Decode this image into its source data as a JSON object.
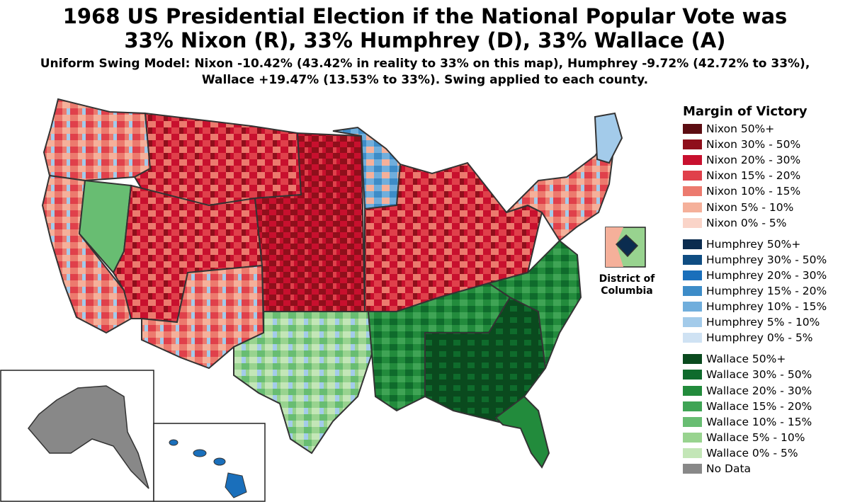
{
  "header": {
    "title_line1": "1968 US Presidential Election if the National Popular Vote was",
    "title_line2": "33% Nixon (R), 33% Humphrey (D), 33% Wallace (A)",
    "subtitle_line1": "Uniform Swing Model: Nixon -10.42% (43.42% in reality to 33% on this map), Humphrey -9.72% (42.72% to 33%),",
    "subtitle_line2": "Wallace +19.47% (13.53% to 33%). Swing applied to each county."
  },
  "inset": {
    "dc_label_line1": "District of",
    "dc_label_line2": "Columbia"
  },
  "legend": {
    "title": "Margin of Victory",
    "groups": [
      [
        {
          "label": "Nixon 50%+",
          "color": "#5c0d12"
        },
        {
          "label": "Nixon 30% - 50%",
          "color": "#8f0f1b"
        },
        {
          "label": "Nixon 20% - 30%",
          "color": "#c8102e"
        },
        {
          "label": "Nixon 15% - 20%",
          "color": "#e0404b"
        },
        {
          "label": "Nixon 10% - 15%",
          "color": "#ec7a6e"
        },
        {
          "label": "Nixon 5% - 10%",
          "color": "#f5b09a"
        },
        {
          "label": "Nixon 0% - 5%",
          "color": "#fad4c8"
        }
      ],
      [
        {
          "label": "Humphrey 50%+",
          "color": "#0b2c4f"
        },
        {
          "label": "Humphrey 30% - 50%",
          "color": "#0f4d82"
        },
        {
          "label": "Humphrey 20% - 30%",
          "color": "#1a6fbb"
        },
        {
          "label": "Humphrey 15% - 20%",
          "color": "#3d8cc8"
        },
        {
          "label": "Humphrey 10% - 15%",
          "color": "#70aedc"
        },
        {
          "label": "Humphrey 5% - 10%",
          "color": "#a3cbea"
        },
        {
          "label": "Humphrey 0% - 5%",
          "color": "#cfe2f3"
        }
      ],
      [
        {
          "label": "Wallace 50%+",
          "color": "#0a4a1e"
        },
        {
          "label": "Wallace 30% - 50%",
          "color": "#0f6b2c"
        },
        {
          "label": "Wallace 20% - 30%",
          "color": "#228b3c"
        },
        {
          "label": "Wallace 15% - 20%",
          "color": "#3fa455"
        },
        {
          "label": "Wallace 10% - 15%",
          "color": "#68bd72"
        },
        {
          "label": "Wallace 5% - 10%",
          "color": "#98d38f"
        },
        {
          "label": "Wallace 0% - 5%",
          "color": "#c3e6b7"
        },
        {
          "label": "No Data",
          "color": "#888888"
        }
      ]
    ]
  }
}
